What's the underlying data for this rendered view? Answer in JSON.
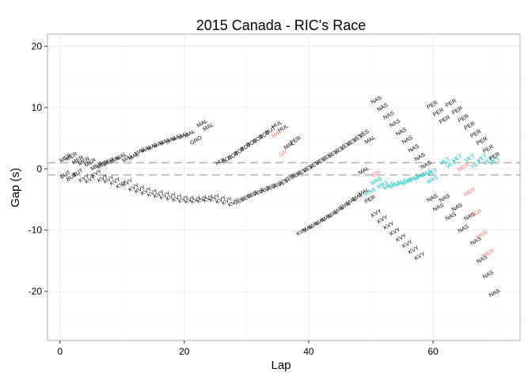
{
  "chart_data": {
    "type": "scatter",
    "title": "2015 Canada - RIC's Race",
    "xlabel": "Lap",
    "ylabel": "Gap (s)",
    "xlim": [
      -2,
      74
    ],
    "ylim": [
      -28,
      22
    ],
    "x_ticks": [
      0,
      20,
      40,
      60
    ],
    "y_ticks": [
      -20,
      -10,
      0,
      10,
      20
    ],
    "reference_lines": [
      1,
      -1
    ],
    "grid": true,
    "label_rotation_deg": 30,
    "colors": {
      "panel_border": "#aaaaaa",
      "grid": "#ebebeb",
      "reference_line": "#b3b3b3",
      "text_points": "#000000",
      "ahead_close": "#f8766d",
      "behind_close": "#00bfc4"
    },
    "categories_by_color": {
      "none": "#000000",
      "red": "#f8766d",
      "cyan": "#00bfc4"
    },
    "points": [
      {
        "lap": 1,
        "gap": 1.5,
        "label": "MER",
        "color": "none"
      },
      {
        "lap": 1,
        "gap": -1.2,
        "label": "BUT",
        "color": "none"
      },
      {
        "lap": 2,
        "gap": 1.8,
        "label": "MER",
        "color": "none"
      },
      {
        "lap": 2,
        "gap": -1.6,
        "label": "BUT",
        "color": "none"
      },
      {
        "lap": 3,
        "gap": 1.2,
        "label": "MER",
        "color": "none"
      },
      {
        "lap": 3,
        "gap": -0.9,
        "label": "BUT",
        "color": "none"
      },
      {
        "lap": 4,
        "gap": 1.0,
        "label": "MER",
        "color": "none"
      },
      {
        "lap": 4,
        "gap": -1.8,
        "label": "KVY",
        "color": "none"
      },
      {
        "lap": 5,
        "gap": 0.8,
        "label": "MER",
        "color": "none"
      },
      {
        "lap": 5,
        "gap": -2.0,
        "label": "KVY",
        "color": "none"
      },
      {
        "lap": 6,
        "gap": 0.2,
        "label": "MER",
        "color": "none"
      },
      {
        "lap": 6,
        "gap": -1.0,
        "label": "KVY",
        "color": "none"
      },
      {
        "lap": 7,
        "gap": 0.5,
        "label": "MER",
        "color": "none"
      },
      {
        "lap": 7,
        "gap": -1.8,
        "label": "KVY",
        "color": "none"
      },
      {
        "lap": 8,
        "gap": 0.9,
        "label": "MER",
        "color": "none"
      },
      {
        "lap": 8,
        "gap": -2.0,
        "label": "KVY",
        "color": "none"
      },
      {
        "lap": 9,
        "gap": 1.3,
        "label": "MAL",
        "color": "none"
      },
      {
        "lap": 9,
        "gap": -2.3,
        "label": "KVY",
        "color": "none"
      },
      {
        "lap": 10,
        "gap": 1.8,
        "label": "MAL",
        "color": "none"
      },
      {
        "lap": 10,
        "gap": -2.8,
        "label": "KVY",
        "color": "none"
      },
      {
        "lap": 11,
        "gap": 1.5,
        "label": "MAL",
        "color": "none"
      },
      {
        "lap": 11,
        "gap": -2.5,
        "label": "KVY",
        "color": "none"
      },
      {
        "lap": 12,
        "gap": 1.8,
        "label": "MAL",
        "color": "none"
      },
      {
        "lap": 12,
        "gap": -3.3,
        "label": "KVY",
        "color": "none"
      },
      {
        "lap": 13,
        "gap": 2.6,
        "label": "MAL",
        "color": "none"
      },
      {
        "lap": 13,
        "gap": -3.6,
        "label": "KVY",
        "color": "none"
      },
      {
        "lap": 14,
        "gap": 3.0,
        "label": "MAL",
        "color": "none"
      },
      {
        "lap": 14,
        "gap": -3.9,
        "label": "KVY",
        "color": "none"
      },
      {
        "lap": 15,
        "gap": 3.4,
        "label": "MAL",
        "color": "none"
      },
      {
        "lap": 15,
        "gap": -4.2,
        "label": "KVY",
        "color": "none"
      },
      {
        "lap": 16,
        "gap": 3.8,
        "label": "MAL",
        "color": "none"
      },
      {
        "lap": 16,
        "gap": -4.4,
        "label": "KVY",
        "color": "none"
      },
      {
        "lap": 17,
        "gap": 4.2,
        "label": "MAL",
        "color": "none"
      },
      {
        "lap": 17,
        "gap": -4.6,
        "label": "KVY",
        "color": "none"
      },
      {
        "lap": 18,
        "gap": 4.5,
        "label": "MAL",
        "color": "none"
      },
      {
        "lap": 18,
        "gap": -4.8,
        "label": "KVY",
        "color": "none"
      },
      {
        "lap": 19,
        "gap": 4.9,
        "label": "MAL",
        "color": "none"
      },
      {
        "lap": 19,
        "gap": -5.0,
        "label": "KVY",
        "color": "none"
      },
      {
        "lap": 20,
        "gap": 5.2,
        "label": "MAL",
        "color": "none"
      },
      {
        "lap": 20,
        "gap": -5.2,
        "label": "KVY",
        "color": "none"
      },
      {
        "lap": 21,
        "gap": 5.5,
        "label": "MAL",
        "color": "none"
      },
      {
        "lap": 21,
        "gap": -5.3,
        "label": "KVY",
        "color": "none"
      },
      {
        "lap": 22,
        "gap": 4.4,
        "label": "GRO",
        "color": "none"
      },
      {
        "lap": 22,
        "gap": -5.3,
        "label": "KVY",
        "color": "none"
      },
      {
        "lap": 23,
        "gap": 7.2,
        "label": "MAL",
        "color": "none"
      },
      {
        "lap": 23,
        "gap": -5.2,
        "label": "KVY",
        "color": "none"
      },
      {
        "lap": 24,
        "gap": 6.6,
        "label": "MAL",
        "color": "none"
      },
      {
        "lap": 24,
        "gap": -5.1,
        "label": "KVY",
        "color": "none"
      },
      {
        "lap": 25,
        "gap": -5.0,
        "label": "KVY",
        "color": "none"
      },
      {
        "lap": 26,
        "gap": 1.0,
        "label": "HUL",
        "color": "none"
      },
      {
        "lap": 26,
        "gap": -5.3,
        "label": "KVY",
        "color": "none"
      },
      {
        "lap": 27,
        "gap": 1.3,
        "label": "BOT",
        "color": "none"
      },
      {
        "lap": 27,
        "gap": -5.5,
        "label": "KVY",
        "color": "none"
      },
      {
        "lap": 28,
        "gap": 1.9,
        "label": "BOT",
        "color": "none"
      },
      {
        "lap": 28,
        "gap": -5.8,
        "label": "KVY",
        "color": "none"
      },
      {
        "lap": 29,
        "gap": 2.6,
        "label": "BOT",
        "color": "none"
      },
      {
        "lap": 29,
        "gap": -5.5,
        "label": "VES",
        "color": "none"
      },
      {
        "lap": 30,
        "gap": 3.3,
        "label": "BOT",
        "color": "none"
      },
      {
        "lap": 30,
        "gap": -5.0,
        "label": "VES",
        "color": "none"
      },
      {
        "lap": 31,
        "gap": 4.0,
        "label": "BOT",
        "color": "none"
      },
      {
        "lap": 31,
        "gap": -4.5,
        "label": "VES",
        "color": "none"
      },
      {
        "lap": 32,
        "gap": 4.6,
        "label": "BOT",
        "color": "none"
      },
      {
        "lap": 32,
        "gap": -4.1,
        "label": "VES",
        "color": "none"
      },
      {
        "lap": 33,
        "gap": 5.3,
        "label": "BOT",
        "color": "none"
      },
      {
        "lap": 33,
        "gap": -3.7,
        "label": "VES",
        "color": "none"
      },
      {
        "lap": 34,
        "gap": 6.0,
        "label": "BUT",
        "color": "none"
      },
      {
        "lap": 34,
        "gap": -3.3,
        "label": "VES",
        "color": "none"
      },
      {
        "lap": 35,
        "gap": 7.0,
        "label": "HUL",
        "color": "none"
      },
      {
        "lap": 35,
        "gap": 5.5,
        "label": "MAL",
        "color": "red"
      },
      {
        "lap": 35,
        "gap": -2.9,
        "label": "VES",
        "color": "none"
      },
      {
        "lap": 36,
        "gap": 6.4,
        "label": "HUL",
        "color": "none"
      },
      {
        "lap": 36,
        "gap": 2.3,
        "label": "SAI",
        "color": "red"
      },
      {
        "lap": 36,
        "gap": -2.5,
        "label": "VES",
        "color": "none"
      },
      {
        "lap": 37,
        "gap": 3.6,
        "label": "MAL",
        "color": "none"
      },
      {
        "lap": 37,
        "gap": -1.8,
        "label": "VES",
        "color": "none"
      },
      {
        "lap": 38,
        "gap": 4.4,
        "label": "PER",
        "color": "none"
      },
      {
        "lap": 38,
        "gap": -1.3,
        "label": "VES",
        "color": "none"
      },
      {
        "lap": 39,
        "gap": -10.5,
        "label": "KVY",
        "color": "none"
      },
      {
        "lap": 39,
        "gap": -0.8,
        "label": "VES",
        "color": "none"
      },
      {
        "lap": 40,
        "gap": -10.0,
        "label": "MAL",
        "color": "none"
      },
      {
        "lap": 40,
        "gap": -0.2,
        "label": "VES",
        "color": "none"
      },
      {
        "lap": 41,
        "gap": -9.4,
        "label": "MAL",
        "color": "none"
      },
      {
        "lap": 41,
        "gap": 0.4,
        "label": "VES",
        "color": "none"
      },
      {
        "lap": 42,
        "gap": -8.8,
        "label": "MAL",
        "color": "none"
      },
      {
        "lap": 42,
        "gap": 1.0,
        "label": "VES",
        "color": "none"
      },
      {
        "lap": 43,
        "gap": -8.2,
        "label": "MAL",
        "color": "none"
      },
      {
        "lap": 43,
        "gap": 1.6,
        "label": "VES",
        "color": "none"
      },
      {
        "lap": 44,
        "gap": -7.6,
        "label": "MAL",
        "color": "none"
      },
      {
        "lap": 44,
        "gap": 2.2,
        "label": "VES",
        "color": "none"
      },
      {
        "lap": 45,
        "gap": -6.9,
        "label": "MAL",
        "color": "none"
      },
      {
        "lap": 45,
        "gap": 2.8,
        "label": "VES",
        "color": "none"
      },
      {
        "lap": 46,
        "gap": -6.2,
        "label": "MAL",
        "color": "none"
      },
      {
        "lap": 46,
        "gap": 3.5,
        "label": "VES",
        "color": "none"
      },
      {
        "lap": 47,
        "gap": -5.5,
        "label": "MAL",
        "color": "none"
      },
      {
        "lap": 47,
        "gap": 4.1,
        "label": "VES",
        "color": "none"
      },
      {
        "lap": 48,
        "gap": -4.8,
        "label": "MAL",
        "color": "none"
      },
      {
        "lap": 48,
        "gap": 4.8,
        "label": "VES",
        "color": "none"
      },
      {
        "lap": 49,
        "gap": -4.0,
        "label": "MAL",
        "color": "none"
      },
      {
        "lap": 49,
        "gap": -0.5,
        "label": "MAL",
        "color": "none"
      },
      {
        "lap": 49,
        "gap": 5.5,
        "label": "VES",
        "color": "none"
      },
      {
        "lap": 50,
        "gap": -5.2,
        "label": "PER",
        "color": "none"
      },
      {
        "lap": 50,
        "gap": -4.0,
        "label": "MAS",
        "color": "cyan"
      },
      {
        "lap": 50,
        "gap": 4.5,
        "label": "MAL",
        "color": "none"
      },
      {
        "lap": 51,
        "gap": -1.0,
        "label": "ERI",
        "color": "red"
      },
      {
        "lap": 51,
        "gap": -2.2,
        "label": "MAS",
        "color": "cyan"
      },
      {
        "lap": 51,
        "gap": -7.5,
        "label": "KVY",
        "color": "none"
      },
      {
        "lap": 51,
        "gap": 11.0,
        "label": "NAS",
        "color": "none"
      },
      {
        "lap": 52,
        "gap": -2.8,
        "label": "MAS",
        "color": "cyan"
      },
      {
        "lap": 52,
        "gap": -8.5,
        "label": "KVY",
        "color": "none"
      },
      {
        "lap": 52,
        "gap": 9.8,
        "label": "NAS",
        "color": "none"
      },
      {
        "lap": 53,
        "gap": -3.0,
        "label": "MAS",
        "color": "cyan"
      },
      {
        "lap": 53,
        "gap": -9.5,
        "label": "KVY",
        "color": "none"
      },
      {
        "lap": 53,
        "gap": 8.5,
        "label": "NAS",
        "color": "none"
      },
      {
        "lap": 54,
        "gap": -2.8,
        "label": "MAS",
        "color": "cyan"
      },
      {
        "lap": 54,
        "gap": -10.5,
        "label": "KVY",
        "color": "none"
      },
      {
        "lap": 54,
        "gap": 7.2,
        "label": "NAS",
        "color": "none"
      },
      {
        "lap": 55,
        "gap": -2.5,
        "label": "MAS",
        "color": "cyan"
      },
      {
        "lap": 55,
        "gap": -11.5,
        "label": "KVY",
        "color": "none"
      },
      {
        "lap": 55,
        "gap": 5.8,
        "label": "NAS",
        "color": "none"
      },
      {
        "lap": 56,
        "gap": -2.3,
        "label": "MAS",
        "color": "cyan"
      },
      {
        "lap": 56,
        "gap": -12.5,
        "label": "KVY",
        "color": "none"
      },
      {
        "lap": 56,
        "gap": 4.5,
        "label": "NAS",
        "color": "none"
      },
      {
        "lap": 57,
        "gap": -1.8,
        "label": "MAS",
        "color": "cyan"
      },
      {
        "lap": 57,
        "gap": -13.5,
        "label": "KVY",
        "color": "none"
      },
      {
        "lap": 57,
        "gap": 3.1,
        "label": "NAS",
        "color": "none"
      },
      {
        "lap": 58,
        "gap": -1.5,
        "label": "MAS",
        "color": "cyan"
      },
      {
        "lap": 58,
        "gap": -14.5,
        "label": "KVY",
        "color": "none"
      },
      {
        "lap": 58,
        "gap": 1.7,
        "label": "NAS",
        "color": "none"
      },
      {
        "lap": 59,
        "gap": -1.0,
        "label": "MAS",
        "color": "cyan"
      },
      {
        "lap": 59,
        "gap": 0.4,
        "label": "NAS",
        "color": "none"
      },
      {
        "lap": 60,
        "gap": 10.2,
        "label": "PER",
        "color": "none"
      },
      {
        "lap": 60,
        "gap": -2.0,
        "label": "MAS",
        "color": "cyan"
      },
      {
        "lap": 60,
        "gap": -0.8,
        "label": "VET",
        "color": "cyan"
      },
      {
        "lap": 60,
        "gap": -5.0,
        "label": "NAS",
        "color": "none"
      },
      {
        "lap": 61,
        "gap": 9.0,
        "label": "PER",
        "color": "none"
      },
      {
        "lap": 61,
        "gap": -6.5,
        "label": "NAS",
        "color": "none"
      },
      {
        "lap": 62,
        "gap": 7.8,
        "label": "PER",
        "color": "none"
      },
      {
        "lap": 62,
        "gap": 1.0,
        "label": "VET",
        "color": "cyan"
      },
      {
        "lap": 62,
        "gap": -5.0,
        "label": "NAS",
        "color": "none"
      },
      {
        "lap": 63,
        "gap": 10.5,
        "label": "PER",
        "color": "none"
      },
      {
        "lap": 63,
        "gap": 0.5,
        "label": "VET",
        "color": "cyan"
      },
      {
        "lap": 63,
        "gap": -8.0,
        "label": "NAS",
        "color": "none"
      },
      {
        "lap": 64,
        "gap": 9.3,
        "label": "PER",
        "color": "none"
      },
      {
        "lap": 64,
        "gap": 1.5,
        "label": "VET",
        "color": "cyan"
      },
      {
        "lap": 64,
        "gap": -6.5,
        "label": "NAS",
        "color": "none"
      },
      {
        "lap": 65,
        "gap": 8.0,
        "label": "PER",
        "color": "none"
      },
      {
        "lap": 65,
        "gap": 0.0,
        "label": "MER",
        "color": "red"
      },
      {
        "lap": 65,
        "gap": -10.0,
        "label": "NAS",
        "color": "none"
      },
      {
        "lap": 66,
        "gap": 6.8,
        "label": "PER",
        "color": "none"
      },
      {
        "lap": 66,
        "gap": 1.5,
        "label": "VET",
        "color": "cyan"
      },
      {
        "lap": 66,
        "gap": -4.0,
        "label": "MER",
        "color": "red"
      },
      {
        "lap": 66,
        "gap": -8.0,
        "label": "NAS",
        "color": "none"
      },
      {
        "lap": 67,
        "gap": 5.5,
        "label": "PER",
        "color": "none"
      },
      {
        "lap": 67,
        "gap": 0.5,
        "label": "VET",
        "color": "cyan"
      },
      {
        "lap": 67,
        "gap": -7.5,
        "label": "MER",
        "color": "red"
      },
      {
        "lap": 67,
        "gap": -12.0,
        "label": "NAS",
        "color": "none"
      },
      {
        "lap": 68,
        "gap": 4.3,
        "label": "PER",
        "color": "none"
      },
      {
        "lap": 68,
        "gap": 1.5,
        "label": "VET",
        "color": "cyan"
      },
      {
        "lap": 68,
        "gap": -11.0,
        "label": "MER",
        "color": "red"
      },
      {
        "lap": 68,
        "gap": -15.0,
        "label": "NAS",
        "color": "none"
      },
      {
        "lap": 69,
        "gap": 3.0,
        "label": "PER",
        "color": "none"
      },
      {
        "lap": 69,
        "gap": 1.0,
        "label": "VET",
        "color": "cyan"
      },
      {
        "lap": 69,
        "gap": -14.0,
        "label": "MER",
        "color": "red"
      },
      {
        "lap": 69,
        "gap": -17.5,
        "label": "NAS",
        "color": "none"
      },
      {
        "lap": 70,
        "gap": 1.8,
        "label": "PER",
        "color": "none"
      },
      {
        "lap": 70,
        "gap": 1.0,
        "label": "VET",
        "color": "cyan"
      },
      {
        "lap": 70,
        "gap": -20.5,
        "label": "NAS",
        "color": "none"
      }
    ]
  }
}
